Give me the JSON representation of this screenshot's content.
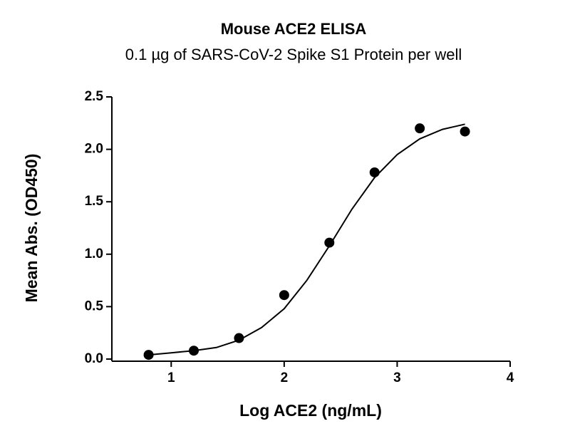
{
  "chart_data": {
    "type": "scatter",
    "title": "Mouse ACE2 ELISA",
    "subtitle": "0.1 µg of SARS-CoV-2 Spike S1 Protein per well",
    "x_label": "Log ACE2 (ng/mL)",
    "y_label": "Mean  Abs. (OD450)",
    "xlim": [
      0.5,
      4
    ],
    "ylim": [
      0,
      2.5
    ],
    "xticks": [
      1,
      2,
      3,
      4
    ],
    "yticks": [
      {
        "value": 0,
        "label": "0.0"
      },
      {
        "value": 0.5,
        "label": "0.5"
      },
      {
        "value": 1,
        "label": "1.0"
      },
      {
        "value": 1.5,
        "label": "1.5"
      },
      {
        "value": 2,
        "label": "2.0"
      },
      {
        "value": 2.5,
        "label": "2.5"
      }
    ],
    "series": [
      {
        "color": "#000000",
        "x": [
          0.8,
          1.2,
          1.6,
          2.0,
          2.4,
          2.8,
          3.2,
          3.6
        ],
        "values": [
          0.04,
          0.08,
          0.2,
          0.61,
          1.11,
          1.78,
          2.2,
          2.17
        ]
      },
      {
        "color": "#000000",
        "style": "line",
        "x": [
          0.8,
          1.0,
          1.2,
          1.4,
          1.6,
          1.8,
          2.0,
          2.2,
          2.4,
          2.6,
          2.8,
          3.0,
          3.2,
          3.4,
          3.6
        ],
        "values": [
          0.04,
          0.06,
          0.08,
          0.11,
          0.18,
          0.3,
          0.48,
          0.75,
          1.08,
          1.43,
          1.73,
          1.95,
          2.1,
          2.19,
          2.24
        ]
      }
    ]
  }
}
